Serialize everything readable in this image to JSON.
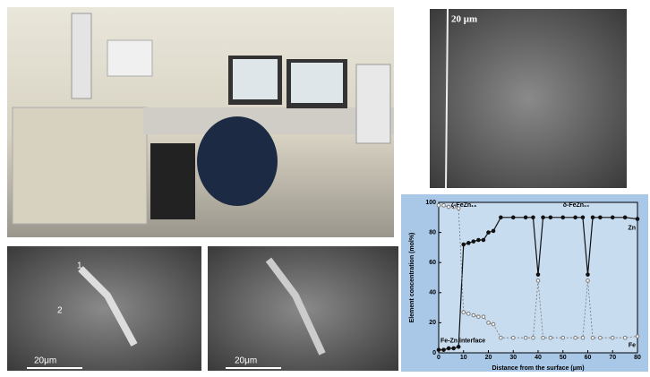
{
  "panels": {
    "sem_top": {
      "scale_label": "20 μm"
    },
    "sem_bottom_left": {
      "scale_label": "20μm",
      "markers": [
        "1",
        "2"
      ]
    },
    "sem_bottom_right": {
      "scale_label": "20μm"
    }
  },
  "chart_data": {
    "type": "line",
    "xlabel": "Distance from the surface (μm)",
    "ylabel": "Element concentration (mol%)",
    "annotations": [
      "Fe-Zn interface",
      "ζ-FeZn₁₃",
      "δ-FeZn₁₀"
    ],
    "x": [
      0,
      2,
      4,
      6,
      8,
      10,
      12,
      14,
      16,
      18,
      20,
      22,
      25,
      30,
      35,
      38,
      40,
      42,
      45,
      50,
      55,
      58,
      60,
      62,
      65,
      70,
      75,
      80
    ],
    "series": [
      {
        "name": "Zn",
        "color": "#111111",
        "values": [
          2,
          2,
          3,
          3,
          4,
          72,
          73,
          74,
          75,
          75,
          80,
          81,
          90,
          90,
          90,
          90,
          52,
          90,
          90,
          90,
          90,
          90,
          52,
          90,
          90,
          90,
          90,
          89
        ]
      },
      {
        "name": "Fe",
        "color": "#777777",
        "values": [
          98,
          98,
          97,
          97,
          96,
          27,
          26,
          25,
          24,
          24,
          20,
          19,
          10,
          10,
          10,
          10,
          48,
          10,
          10,
          10,
          10,
          10,
          48,
          10,
          10,
          10,
          10,
          11
        ]
      }
    ],
    "xlim": [
      0,
      80
    ],
    "xticks": [
      0,
      10,
      20,
      30,
      40,
      50,
      60,
      70,
      80
    ],
    "ylim": [
      0,
      100
    ],
    "yticks": [
      0,
      20,
      40,
      60,
      80,
      100
    ]
  }
}
